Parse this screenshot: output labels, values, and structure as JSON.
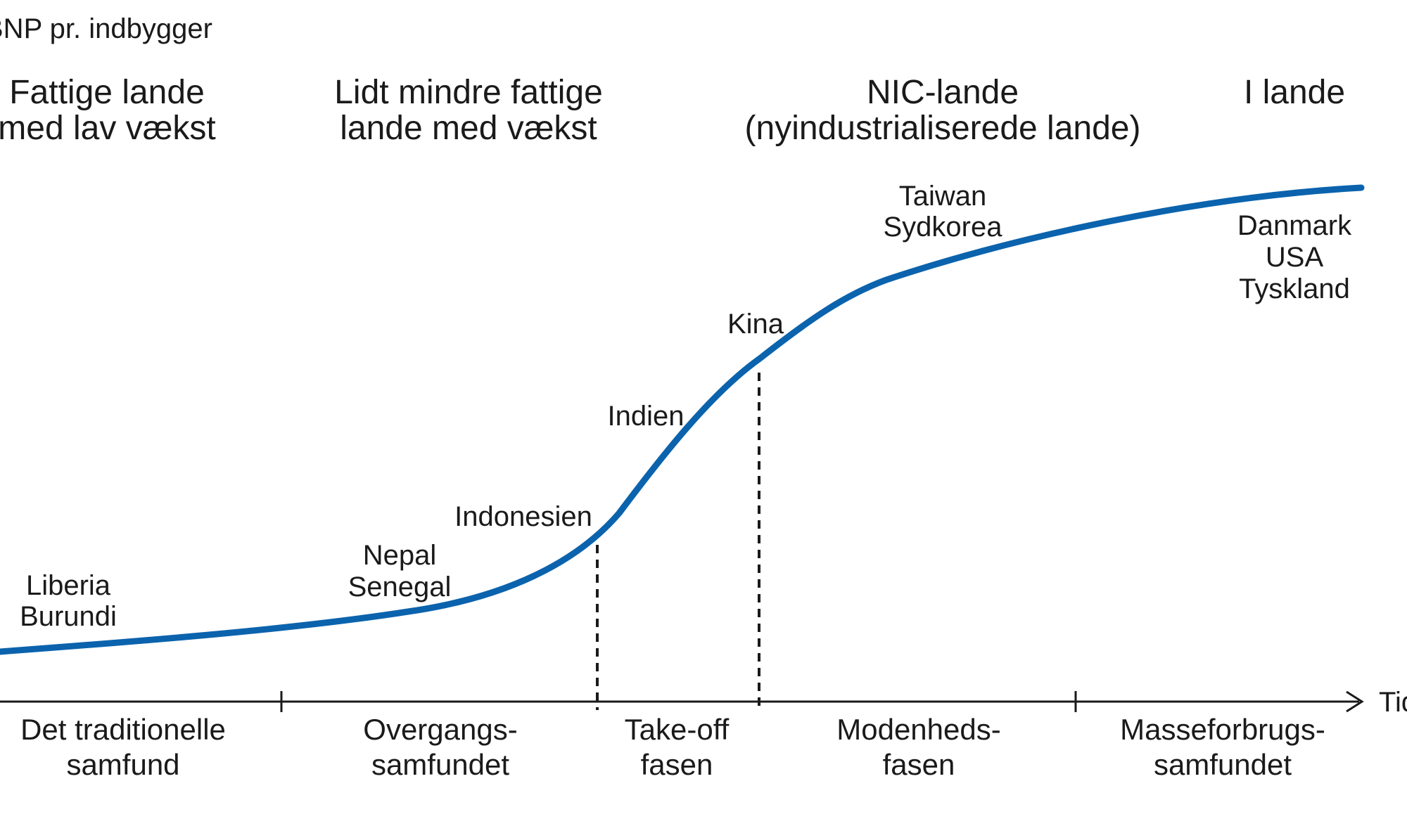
{
  "y_axis_label": "BNP pr. indbygger",
  "x_axis_label": "Tid",
  "colors": {
    "curve": "#0b63ad",
    "ink": "#1a1a1a"
  },
  "group_headings": [
    {
      "line1": "Fattige lande",
      "line2": "med lav vækst"
    },
    {
      "line1": "Lidt mindre fattige",
      "line2": "lande med vækst"
    },
    {
      "line1": "NIC-lande",
      "line2": "(nyindustrialiserede lande)"
    },
    {
      "line1": "I lande",
      "line2": ""
    }
  ],
  "country_labels": [
    {
      "lines": [
        "Liberia",
        "Burundi"
      ]
    },
    {
      "lines": [
        "Nepal",
        "Senegal"
      ]
    },
    {
      "lines": [
        "Indonesien"
      ]
    },
    {
      "lines": [
        "Indien"
      ]
    },
    {
      "lines": [
        "Kina"
      ]
    },
    {
      "lines": [
        "Taiwan",
        "Sydkorea"
      ]
    },
    {
      "lines": [
        "Danmark",
        "USA",
        "Tyskland"
      ]
    }
  ],
  "stages": [
    {
      "line1": "Det traditionelle",
      "line2": "samfund"
    },
    {
      "line1": "Overgangs-",
      "line2": "samfundet"
    },
    {
      "line1": "Take-off",
      "line2": "fasen"
    },
    {
      "line1": "Modenheds-",
      "line2": "fasen"
    },
    {
      "line1": "Masseforbrugs-",
      "line2": "samfundet"
    }
  ]
}
